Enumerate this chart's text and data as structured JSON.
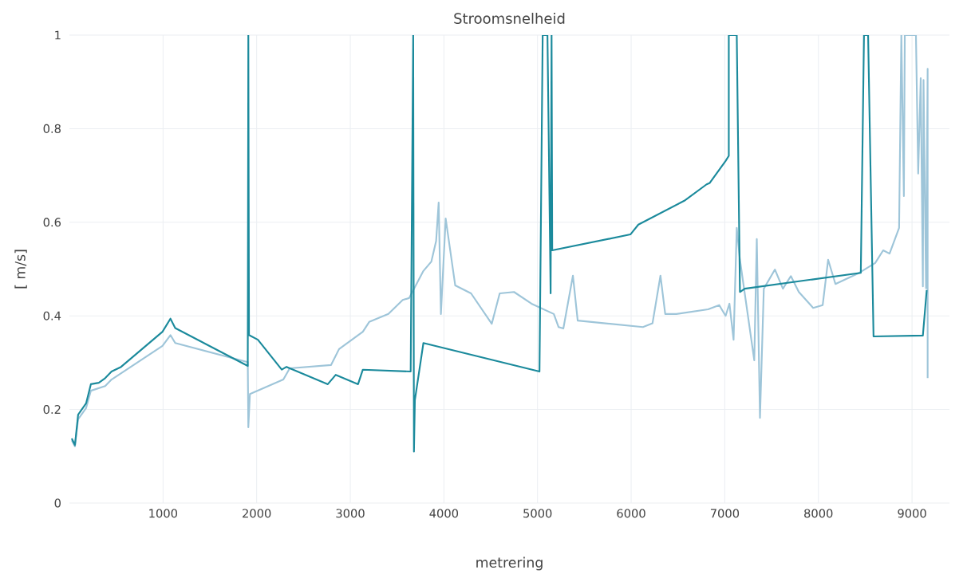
{
  "chart_data": {
    "type": "line",
    "title": "Stroomsnelheid",
    "xlabel": "metrering",
    "ylabel": "[ m/s]",
    "xlim": [
      0,
      9400
    ],
    "ylim": [
      0,
      1
    ],
    "xticks": [
      1000,
      2000,
      3000,
      4000,
      5000,
      6000,
      7000,
      8000,
      9000
    ],
    "yticks": [
      0,
      0.2,
      0.4,
      0.6,
      0.8,
      1
    ],
    "grid": true,
    "marker": "none",
    "line_style": "solid",
    "series": [
      {
        "color": "#9ec5d9",
        "x": [
          25,
          59,
          93,
          178,
          229,
          382,
          450,
          994,
          1079,
          1130,
          1905,
          1911,
          1928,
          2285,
          2353,
          2795,
          2880,
          3134,
          3202,
          3407,
          3560,
          3628,
          3781,
          3866,
          3917,
          3944,
          3968,
          4019,
          4121,
          4290,
          4511,
          4596,
          4749,
          4936,
          5174,
          5225,
          5276,
          5378,
          5429,
          6126,
          6228,
          6313,
          6364,
          6483,
          6822,
          6941,
          7009,
          7050,
          7094,
          7128,
          7162,
          7315,
          7342,
          7376,
          7417,
          7536,
          7621,
          7706,
          7791,
          7944,
          8046,
          8104,
          8182,
          8437,
          8607,
          8692,
          8760,
          8862,
          8886,
          8913,
          8923,
          9042,
          9066,
          9093,
          9116,
          9123,
          9150,
          9167,
          9167
        ],
        "values": [
          0.134,
          0.121,
          0.179,
          0.203,
          0.24,
          0.25,
          0.264,
          0.336,
          0.359,
          0.342,
          0.301,
          0.162,
          0.233,
          0.264,
          0.288,
          0.295,
          0.329,
          0.366,
          0.387,
          0.404,
          0.434,
          0.438,
          0.496,
          0.516,
          0.56,
          0.642,
          0.404,
          0.608,
          0.465,
          0.448,
          0.383,
          0.448,
          0.451,
          0.426,
          0.404,
          0.376,
          0.373,
          0.486,
          0.39,
          0.376,
          0.384,
          0.486,
          0.404,
          0.404,
          0.414,
          0.423,
          0.4,
          0.426,
          0.349,
          0.588,
          0.52,
          0.305,
          0.564,
          0.182,
          0.458,
          0.499,
          0.458,
          0.485,
          0.451,
          0.417,
          0.423,
          0.52,
          0.468,
          0.492,
          0.513,
          0.54,
          0.533,
          0.588,
          1.0,
          0.656,
          1.0,
          1.0,
          0.704,
          0.908,
          0.463,
          0.904,
          0.459,
          0.928,
          0.267
        ]
      },
      {
        "color": "#1b8a9c",
        "x": [
          25,
          59,
          93,
          178,
          229,
          314,
          382,
          450,
          552,
          994,
          1079,
          1130,
          1905,
          1911,
          1918,
          2013,
          2268,
          2319,
          2760,
          2845,
          3083,
          3134,
          3645,
          3672,
          3680,
          3690,
          3781,
          5021,
          5055,
          5106,
          5140,
          5150,
          5157,
          5992,
          6077,
          6568,
          6806,
          6840,
          7009,
          7043,
          7043,
          7128,
          7162,
          7213,
          8453,
          8487,
          8531,
          8589,
          9116,
          9157
        ],
        "values": [
          0.138,
          0.124,
          0.189,
          0.213,
          0.254,
          0.257,
          0.267,
          0.281,
          0.291,
          0.366,
          0.394,
          0.374,
          0.293,
          1.0,
          0.359,
          0.349,
          0.285,
          0.291,
          0.254,
          0.274,
          0.254,
          0.285,
          0.281,
          1.0,
          0.11,
          0.22,
          0.342,
          0.281,
          1.0,
          1.0,
          0.448,
          1.0,
          0.54,
          0.574,
          0.595,
          0.646,
          0.681,
          0.684,
          0.731,
          0.742,
          1.0,
          1.0,
          0.451,
          0.458,
          0.492,
          1.0,
          1.0,
          0.356,
          0.358,
          0.455
        ]
      }
    ]
  }
}
